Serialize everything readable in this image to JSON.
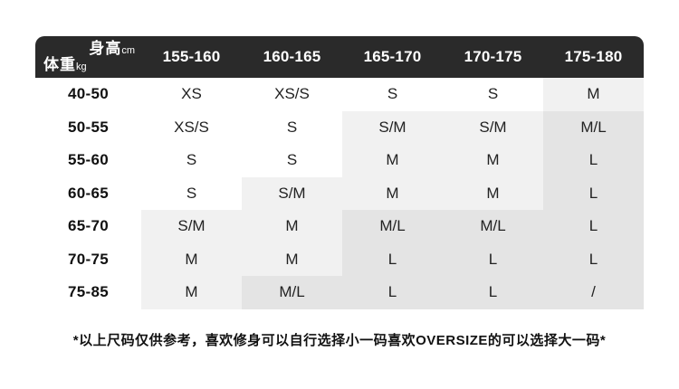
{
  "colors": {
    "header_bg": "#2a2a2a",
    "header_text": "#ffffff",
    "light_cell_bg": "#f1f1f1",
    "dark_cell_bg": "#e4e4e4"
  },
  "table": {
    "corner": {
      "top_label": "身高",
      "top_unit": "cm",
      "bottom_label": "体重",
      "bottom_unit": "kg"
    },
    "columns": [
      "155-160",
      "160-165",
      "165-170",
      "170-175",
      "175-180"
    ],
    "rows": [
      {
        "label": "40-50",
        "cells": [
          {
            "v": "XS",
            "bg": "white"
          },
          {
            "v": "XS/S",
            "bg": "white"
          },
          {
            "v": "S",
            "bg": "white"
          },
          {
            "v": "S",
            "bg": "white"
          },
          {
            "v": "M",
            "bg": "light"
          }
        ]
      },
      {
        "label": "50-55",
        "cells": [
          {
            "v": "XS/S",
            "bg": "white"
          },
          {
            "v": "S",
            "bg": "white"
          },
          {
            "v": "S/M",
            "bg": "light"
          },
          {
            "v": "S/M",
            "bg": "light"
          },
          {
            "v": "M/L",
            "bg": "dark"
          }
        ]
      },
      {
        "label": "55-60",
        "cells": [
          {
            "v": "S",
            "bg": "white"
          },
          {
            "v": "S",
            "bg": "white"
          },
          {
            "v": "M",
            "bg": "light"
          },
          {
            "v": "M",
            "bg": "light"
          },
          {
            "v": "L",
            "bg": "dark"
          }
        ]
      },
      {
        "label": "60-65",
        "cells": [
          {
            "v": "S",
            "bg": "white"
          },
          {
            "v": "S/M",
            "bg": "light"
          },
          {
            "v": "M",
            "bg": "light"
          },
          {
            "v": "M",
            "bg": "light"
          },
          {
            "v": "L",
            "bg": "dark"
          }
        ]
      },
      {
        "label": "65-70",
        "cells": [
          {
            "v": "S/M",
            "bg": "light"
          },
          {
            "v": "M",
            "bg": "light"
          },
          {
            "v": "M/L",
            "bg": "dark"
          },
          {
            "v": "M/L",
            "bg": "dark"
          },
          {
            "v": "L",
            "bg": "dark"
          }
        ]
      },
      {
        "label": "70-75",
        "cells": [
          {
            "v": "M",
            "bg": "light"
          },
          {
            "v": "M",
            "bg": "light"
          },
          {
            "v": "L",
            "bg": "dark"
          },
          {
            "v": "L",
            "bg": "dark"
          },
          {
            "v": "L",
            "bg": "dark"
          }
        ]
      },
      {
        "label": "75-85",
        "cells": [
          {
            "v": "M",
            "bg": "light"
          },
          {
            "v": "M/L",
            "bg": "dark"
          },
          {
            "v": "L",
            "bg": "dark"
          },
          {
            "v": "L",
            "bg": "dark"
          },
          {
            "v": "/",
            "bg": "dark"
          }
        ]
      }
    ]
  },
  "note": "*以上尺码仅供参考，喜欢修身可以自行选择小一码喜欢OVERSIZE的可以选择大一码*"
}
